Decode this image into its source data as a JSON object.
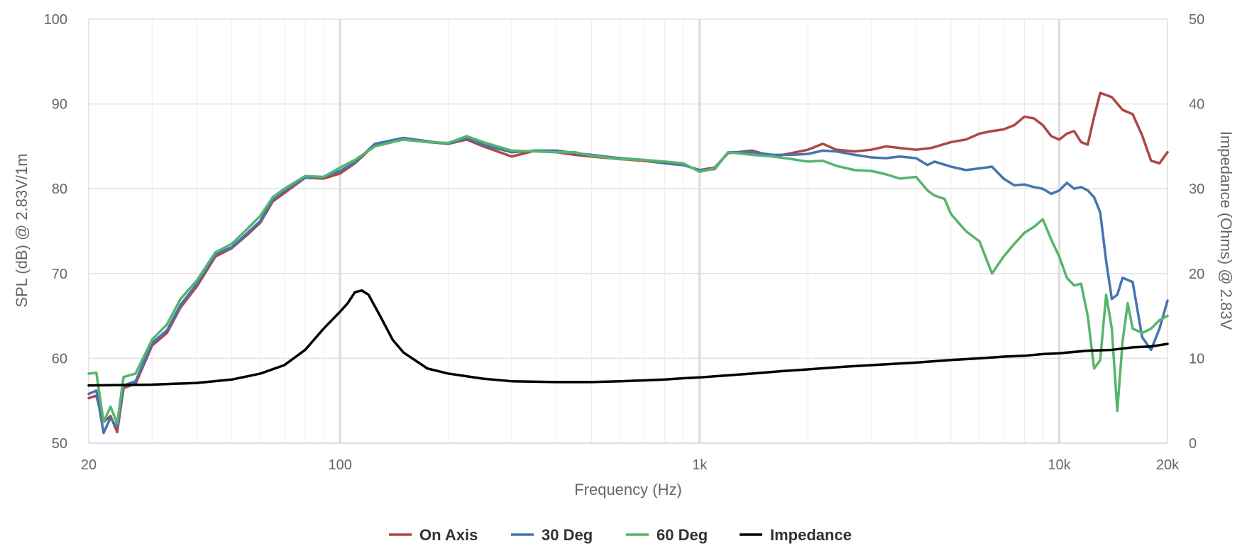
{
  "chart_data": {
    "type": "line",
    "title": "",
    "xlabel": "Frequency (Hz)",
    "ylabel_left": "SPL (dB) @ 2.83V/1m",
    "ylabel_right": "Impedance (Ohms) @ 2.83V",
    "x_scale": "log",
    "xlim": [
      20,
      20000
    ],
    "ylim_left": [
      50,
      100
    ],
    "ylim_right": [
      0,
      50
    ],
    "x_ticks": [
      {
        "value": 20,
        "label": "20"
      },
      {
        "value": 100,
        "label": "100"
      },
      {
        "value": 1000,
        "label": "1k"
      },
      {
        "value": 10000,
        "label": "10k"
      },
      {
        "value": 20000,
        "label": "20k"
      }
    ],
    "y_ticks_left": [
      "50",
      "60",
      "70",
      "80",
      "90",
      "100"
    ],
    "y_ticks_right": [
      "0",
      "10",
      "20",
      "30",
      "40",
      "50"
    ],
    "legend_position": "bottom-center",
    "series": [
      {
        "name": "On Axis",
        "color": "#b04545",
        "axis": "left",
        "points": [
          [
            20,
            55.3
          ],
          [
            21,
            55.6
          ],
          [
            22,
            52.5
          ],
          [
            23,
            53.2
          ],
          [
            24,
            51.3
          ],
          [
            25,
            56.5
          ],
          [
            27,
            57
          ],
          [
            30,
            61.5
          ],
          [
            33,
            63
          ],
          [
            36,
            66
          ],
          [
            40,
            68.5
          ],
          [
            45,
            72
          ],
          [
            50,
            73
          ],
          [
            55,
            74.5
          ],
          [
            60,
            76
          ],
          [
            65,
            78.5
          ],
          [
            70,
            79.5
          ],
          [
            80,
            81.3
          ],
          [
            90,
            81.2
          ],
          [
            100,
            81.8
          ],
          [
            110,
            83
          ],
          [
            125,
            85.2
          ],
          [
            150,
            85.8
          ],
          [
            175,
            85.5
          ],
          [
            200,
            85.3
          ],
          [
            225,
            85.8
          ],
          [
            250,
            85
          ],
          [
            300,
            83.8
          ],
          [
            350,
            84.5
          ],
          [
            400,
            84.3
          ],
          [
            450,
            84
          ],
          [
            500,
            83.8
          ],
          [
            600,
            83.5
          ],
          [
            700,
            83.3
          ],
          [
            800,
            83
          ],
          [
            900,
            82.8
          ],
          [
            1000,
            82.2
          ],
          [
            1100,
            82.5
          ],
          [
            1200,
            84.2
          ],
          [
            1400,
            84.5
          ],
          [
            1600,
            83.8
          ],
          [
            1800,
            84.2
          ],
          [
            2000,
            84.6
          ],
          [
            2200,
            85.3
          ],
          [
            2400,
            84.6
          ],
          [
            2700,
            84.4
          ],
          [
            3000,
            84.6
          ],
          [
            3300,
            85
          ],
          [
            3600,
            84.8
          ],
          [
            4000,
            84.6
          ],
          [
            4400,
            84.8
          ],
          [
            5000,
            85.5
          ],
          [
            5500,
            85.8
          ],
          [
            6000,
            86.5
          ],
          [
            6500,
            86.8
          ],
          [
            7000,
            87
          ],
          [
            7500,
            87.5
          ],
          [
            8000,
            88.5
          ],
          [
            8500,
            88.3
          ],
          [
            9000,
            87.5
          ],
          [
            9500,
            86.2
          ],
          [
            10000,
            85.8
          ],
          [
            10500,
            86.5
          ],
          [
            11000,
            86.8
          ],
          [
            11500,
            85.5
          ],
          [
            12000,
            85.2
          ],
          [
            12500,
            88.5
          ],
          [
            13000,
            91.3
          ],
          [
            14000,
            90.8
          ],
          [
            15000,
            89.3
          ],
          [
            16000,
            88.8
          ],
          [
            17000,
            86.3
          ],
          [
            18000,
            83.3
          ],
          [
            19000,
            83
          ],
          [
            20000,
            84.3
          ]
        ]
      },
      {
        "name": "30 Deg",
        "color": "#4674b0",
        "axis": "left",
        "points": [
          [
            20,
            55.8
          ],
          [
            21,
            56.2
          ],
          [
            22,
            51.2
          ],
          [
            23,
            53
          ],
          [
            24,
            51.8
          ],
          [
            25,
            56.8
          ],
          [
            27,
            57.3
          ],
          [
            30,
            61.8
          ],
          [
            33,
            63.3
          ],
          [
            36,
            66.3
          ],
          [
            40,
            68.8
          ],
          [
            45,
            72.3
          ],
          [
            50,
            73.1
          ],
          [
            55,
            74.7
          ],
          [
            60,
            76.2
          ],
          [
            65,
            78.7
          ],
          [
            70,
            79.8
          ],
          [
            80,
            81.3
          ],
          [
            90,
            81.4
          ],
          [
            100,
            82.1
          ],
          [
            110,
            83.1
          ],
          [
            125,
            85.3
          ],
          [
            150,
            86
          ],
          [
            175,
            85.6
          ],
          [
            200,
            85.3
          ],
          [
            225,
            86
          ],
          [
            250,
            85.2
          ],
          [
            300,
            84.3
          ],
          [
            350,
            84.5
          ],
          [
            400,
            84.5
          ],
          [
            450,
            84.2
          ],
          [
            500,
            84
          ],
          [
            600,
            83.6
          ],
          [
            700,
            83.4
          ],
          [
            800,
            83
          ],
          [
            900,
            82.8
          ],
          [
            1000,
            82.2
          ],
          [
            1100,
            82.3
          ],
          [
            1200,
            84.3
          ],
          [
            1400,
            84.3
          ],
          [
            1600,
            84
          ],
          [
            1800,
            84
          ],
          [
            2000,
            84.1
          ],
          [
            2200,
            84.5
          ],
          [
            2400,
            84.4
          ],
          [
            2700,
            84
          ],
          [
            3000,
            83.7
          ],
          [
            3300,
            83.6
          ],
          [
            3600,
            83.8
          ],
          [
            4000,
            83.6
          ],
          [
            4300,
            82.8
          ],
          [
            4500,
            83.2
          ],
          [
            5000,
            82.6
          ],
          [
            5500,
            82.2
          ],
          [
            6000,
            82.4
          ],
          [
            6500,
            82.6
          ],
          [
            7000,
            81.2
          ],
          [
            7500,
            80.4
          ],
          [
            8000,
            80.5
          ],
          [
            8500,
            80.2
          ],
          [
            9000,
            80
          ],
          [
            9500,
            79.4
          ],
          [
            10000,
            79.8
          ],
          [
            10500,
            80.7
          ],
          [
            11000,
            80
          ],
          [
            11500,
            80.2
          ],
          [
            12000,
            79.8
          ],
          [
            12500,
            79
          ],
          [
            13000,
            77.2
          ],
          [
            13500,
            71.5
          ],
          [
            14000,
            67
          ],
          [
            14500,
            67.5
          ],
          [
            15000,
            69.5
          ],
          [
            16000,
            69
          ],
          [
            17000,
            62.5
          ],
          [
            18000,
            61
          ],
          [
            19000,
            63.5
          ],
          [
            20000,
            66.8
          ]
        ]
      },
      {
        "name": "60 Deg",
        "color": "#56b56b",
        "axis": "left",
        "points": [
          [
            20,
            58.2
          ],
          [
            21,
            58.3
          ],
          [
            22,
            52.5
          ],
          [
            23,
            54.3
          ],
          [
            24,
            52.3
          ],
          [
            25,
            57.8
          ],
          [
            27,
            58.2
          ],
          [
            30,
            62.2
          ],
          [
            33,
            64
          ],
          [
            36,
            67
          ],
          [
            40,
            69.2
          ],
          [
            45,
            72.5
          ],
          [
            50,
            73.5
          ],
          [
            55,
            75.2
          ],
          [
            60,
            76.8
          ],
          [
            65,
            79
          ],
          [
            70,
            80
          ],
          [
            80,
            81.5
          ],
          [
            90,
            81.4
          ],
          [
            100,
            82.5
          ],
          [
            110,
            83.4
          ],
          [
            125,
            85
          ],
          [
            150,
            85.8
          ],
          [
            175,
            85.5
          ],
          [
            200,
            85.4
          ],
          [
            225,
            86.2
          ],
          [
            250,
            85.5
          ],
          [
            300,
            84.5
          ],
          [
            350,
            84.4
          ],
          [
            400,
            84.3
          ],
          [
            450,
            84.3
          ],
          [
            500,
            83.9
          ],
          [
            600,
            83.5
          ],
          [
            700,
            83.4
          ],
          [
            800,
            83.2
          ],
          [
            900,
            83
          ],
          [
            1000,
            82
          ],
          [
            1100,
            82.4
          ],
          [
            1200,
            84.3
          ],
          [
            1400,
            84
          ],
          [
            1600,
            83.8
          ],
          [
            1800,
            83.5
          ],
          [
            2000,
            83.2
          ],
          [
            2200,
            83.3
          ],
          [
            2400,
            82.7
          ],
          [
            2700,
            82.2
          ],
          [
            3000,
            82.1
          ],
          [
            3300,
            81.7
          ],
          [
            3600,
            81.2
          ],
          [
            4000,
            81.4
          ],
          [
            4300,
            79.8
          ],
          [
            4500,
            79.2
          ],
          [
            4800,
            78.8
          ],
          [
            5000,
            77
          ],
          [
            5500,
            75
          ],
          [
            6000,
            73.8
          ],
          [
            6500,
            70
          ],
          [
            7000,
            72
          ],
          [
            7500,
            73.5
          ],
          [
            8000,
            74.8
          ],
          [
            8500,
            75.5
          ],
          [
            9000,
            76.4
          ],
          [
            9500,
            74
          ],
          [
            10000,
            72
          ],
          [
            10500,
            69.5
          ],
          [
            11000,
            68.6
          ],
          [
            11500,
            68.8
          ],
          [
            12000,
            65
          ],
          [
            12500,
            58.8
          ],
          [
            13000,
            59.8
          ],
          [
            13500,
            67.5
          ],
          [
            14000,
            63.5
          ],
          [
            14500,
            53.8
          ],
          [
            15000,
            62
          ],
          [
            15500,
            66.5
          ],
          [
            16000,
            63.5
          ],
          [
            17000,
            63
          ],
          [
            18000,
            63.5
          ],
          [
            19000,
            64.5
          ],
          [
            20000,
            65
          ]
        ]
      },
      {
        "name": "Impedance",
        "color": "#000000",
        "axis": "right",
        "points": [
          [
            20,
            6.8
          ],
          [
            30,
            6.9
          ],
          [
            40,
            7.1
          ],
          [
            50,
            7.5
          ],
          [
            60,
            8.2
          ],
          [
            70,
            9.2
          ],
          [
            80,
            11
          ],
          [
            90,
            13.5
          ],
          [
            100,
            15.5
          ],
          [
            105,
            16.5
          ],
          [
            110,
            17.8
          ],
          [
            115,
            18
          ],
          [
            120,
            17.5
          ],
          [
            130,
            14.8
          ],
          [
            140,
            12.2
          ],
          [
            150,
            10.7
          ],
          [
            175,
            8.8
          ],
          [
            200,
            8.2
          ],
          [
            250,
            7.6
          ],
          [
            300,
            7.3
          ],
          [
            400,
            7.2
          ],
          [
            500,
            7.2
          ],
          [
            600,
            7.3
          ],
          [
            700,
            7.4
          ],
          [
            800,
            7.5
          ],
          [
            900,
            7.65
          ],
          [
            1000,
            7.75
          ],
          [
            1200,
            8
          ],
          [
            1400,
            8.2
          ],
          [
            1700,
            8.5
          ],
          [
            2000,
            8.7
          ],
          [
            2500,
            9
          ],
          [
            3000,
            9.2
          ],
          [
            4000,
            9.5
          ],
          [
            5000,
            9.8
          ],
          [
            6000,
            10
          ],
          [
            7000,
            10.2
          ],
          [
            8000,
            10.3
          ],
          [
            9000,
            10.5
          ],
          [
            10000,
            10.6
          ],
          [
            12000,
            10.9
          ],
          [
            14000,
            11
          ],
          [
            16000,
            11.3
          ],
          [
            18000,
            11.4
          ],
          [
            20000,
            11.7
          ]
        ]
      }
    ]
  }
}
